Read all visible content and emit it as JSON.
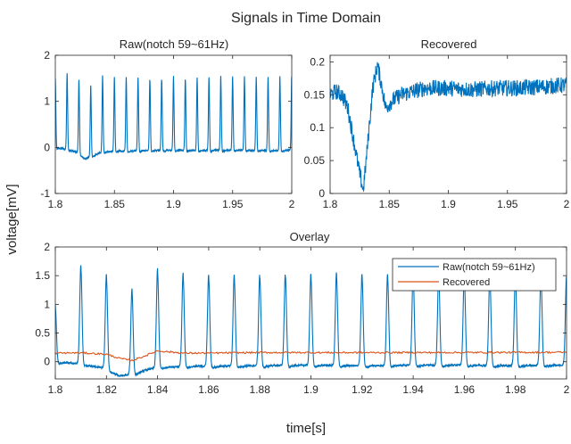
{
  "figure": {
    "title": "Signals in Time Domain",
    "xlabel": "time[s]",
    "ylabel": "voltage[mV]"
  },
  "colors": {
    "raw": "#0072BD",
    "recovered": "#D95319",
    "axis": "#262626",
    "text": "#262626"
  },
  "chart_data": [
    {
      "type": "line",
      "title": "Raw(notch 59~61Hz)",
      "xlim": [
        1.8,
        2
      ],
      "ylim": [
        -1,
        2
      ],
      "xticks": [
        "1.8",
        "1.85",
        "1.9",
        "1.95",
        "2"
      ],
      "yticks": [
        "-1",
        "0",
        "1",
        "2"
      ],
      "series": [
        {
          "name": "Raw(notch 59~61Hz)",
          "peak_times_s": [
            1.8,
            1.81,
            1.82,
            1.83,
            1.84,
            1.85,
            1.86,
            1.87,
            1.88,
            1.89,
            1.9,
            1.91,
            1.92,
            1.93,
            1.94,
            1.95,
            1.96,
            1.97,
            1.98,
            1.99,
            2.0
          ],
          "peak_values_mV": [
            1.5,
            1.65,
            1.6,
            1.55,
            1.65,
            1.6,
            1.6,
            1.6,
            1.6,
            1.6,
            1.6,
            1.6,
            1.6,
            1.6,
            1.6,
            1.6,
            1.6,
            1.6,
            1.6,
            1.6,
            1.6
          ],
          "baseline_x": [
            1.8,
            1.81,
            1.815,
            1.82,
            1.825,
            1.83,
            1.835,
            1.84,
            1.85,
            1.86,
            1.88,
            1.9,
            1.92,
            1.94,
            1.96,
            1.98,
            2.0
          ],
          "baseline_y": [
            0.0,
            -0.04,
            -0.08,
            -0.12,
            -0.25,
            -0.2,
            -0.15,
            -0.1,
            -0.08,
            -0.08,
            -0.07,
            -0.06,
            -0.07,
            -0.06,
            -0.06,
            -0.07,
            -0.06
          ]
        }
      ]
    },
    {
      "type": "line",
      "title": "Recovered",
      "xlim": [
        1.8,
        2
      ],
      "ylim": [
        0,
        0.21
      ],
      "xticks": [
        "1.8",
        "1.85",
        "1.9",
        "1.95",
        "2"
      ],
      "yticks": [
        "0",
        "0.05",
        "0.1",
        "0.15",
        "0.2"
      ],
      "series": [
        {
          "name": "Recovered",
          "x": [
            1.8,
            1.805,
            1.81,
            1.815,
            1.818,
            1.822,
            1.825,
            1.828,
            1.83,
            1.833,
            1.836,
            1.84,
            1.843,
            1.847,
            1.852,
            1.86,
            1.87,
            1.88,
            1.9,
            1.92,
            1.94,
            1.96,
            1.98,
            2.0
          ],
          "y": [
            0.15,
            0.155,
            0.15,
            0.13,
            0.1,
            0.06,
            0.03,
            0.005,
            0.04,
            0.1,
            0.16,
            0.195,
            0.17,
            0.13,
            0.14,
            0.15,
            0.155,
            0.16,
            0.16,
            0.158,
            0.16,
            0.16,
            0.162,
            0.165
          ]
        }
      ]
    },
    {
      "type": "line",
      "title": "Overlay",
      "xlim": [
        1.8,
        2
      ],
      "ylim": [
        -0.3,
        2
      ],
      "xticks": [
        "1.8",
        "1.82",
        "1.84",
        "1.86",
        "1.88",
        "1.9",
        "1.92",
        "1.94",
        "1.96",
        "1.98",
        "2"
      ],
      "yticks": [
        "0",
        "0.5",
        "1",
        "1.5",
        "2"
      ],
      "legend": "top-right",
      "series": [
        {
          "name": "Raw(notch 59~61Hz)",
          "peak_times_s": [
            1.8,
            1.81,
            1.82,
            1.83,
            1.84,
            1.85,
            1.86,
            1.87,
            1.88,
            1.89,
            1.9,
            1.91,
            1.92,
            1.93,
            1.94,
            1.95,
            1.96,
            1.97,
            1.98,
            1.99,
            2.0
          ],
          "peak_values_mV": [
            1.0,
            1.72,
            1.65,
            1.5,
            1.72,
            1.63,
            1.6,
            1.6,
            1.6,
            1.62,
            1.6,
            1.62,
            1.6,
            1.6,
            1.62,
            1.6,
            1.6,
            1.6,
            1.62,
            1.6,
            1.55
          ],
          "baseline_x": [
            1.8,
            1.81,
            1.815,
            1.82,
            1.825,
            1.83,
            1.835,
            1.84,
            1.85,
            1.86,
            1.88,
            1.9,
            1.92,
            1.94,
            1.96,
            1.98,
            2.0
          ],
          "baseline_y": [
            0.0,
            -0.04,
            -0.08,
            -0.12,
            -0.25,
            -0.22,
            -0.15,
            -0.1,
            -0.08,
            -0.08,
            -0.07,
            -0.06,
            -0.07,
            -0.06,
            -0.06,
            -0.07,
            -0.06
          ]
        },
        {
          "name": "Recovered",
          "x": [
            1.8,
            1.81,
            1.82,
            1.825,
            1.83,
            1.835,
            1.84,
            1.85,
            1.86,
            1.88,
            1.9,
            1.92,
            1.94,
            1.96,
            1.98,
            2.0
          ],
          "y": [
            0.15,
            0.155,
            0.13,
            0.06,
            0.02,
            0.1,
            0.19,
            0.15,
            0.15,
            0.16,
            0.16,
            0.158,
            0.16,
            0.16,
            0.162,
            0.165
          ]
        }
      ]
    }
  ]
}
